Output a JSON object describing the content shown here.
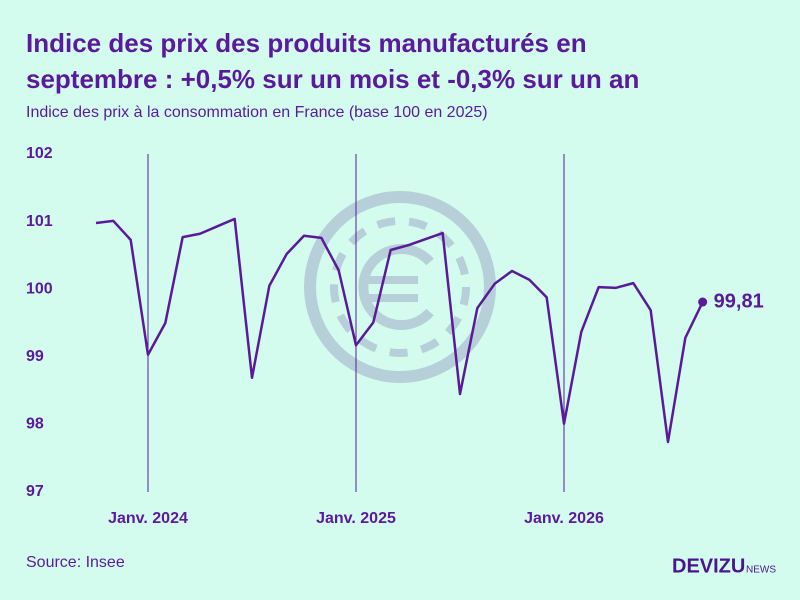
{
  "chart_data": {
    "type": "line",
    "title": "Indice des prix des produits manufacturés en septembre : +0,5% sur un mois et -0,3% sur un an",
    "title_lines": [
      "Indice des prix des produits manufacturés en",
      "septembre : +0,5% sur un mois et -0,3% sur un an"
    ],
    "subtitle": "Indice des prix à la consommation en France (base 100 en 2025)",
    "source": "Source: Insee",
    "logo": {
      "name": "DEVIZU",
      "suffix": "NEWS"
    },
    "categories": [
      null,
      null,
      null,
      "Janv. 2024",
      null,
      null,
      null,
      null,
      null,
      null,
      null,
      null,
      null,
      null,
      null,
      "Janv. 2025",
      null,
      null,
      null,
      null,
      null,
      null,
      null,
      null,
      null,
      null,
      null,
      "Janv. 2026",
      null,
      null,
      null,
      null,
      null,
      null,
      null,
      null
    ],
    "series": [
      {
        "name": "Indice",
        "color": "#5a1a9a",
        "values": [
          100.98,
          101.01,
          100.73,
          99.03,
          99.5,
          100.77,
          100.82,
          100.93,
          101.04,
          98.69,
          100.05,
          100.52,
          100.79,
          100.76,
          100.28,
          99.17,
          99.51,
          100.58,
          100.65,
          100.74,
          100.83,
          98.45,
          99.72,
          100.08,
          100.27,
          100.14,
          99.88,
          98.01,
          99.37,
          100.03,
          100.02,
          100.09,
          99.69,
          97.74,
          99.28,
          99.81
        ],
        "value_labels": [
          null,
          null,
          null,
          null,
          null,
          null,
          null,
          null,
          null,
          null,
          null,
          null,
          null,
          null,
          null,
          null,
          null,
          null,
          null,
          null,
          null,
          null,
          null,
          null,
          null,
          null,
          null,
          null,
          null,
          null,
          null,
          null,
          null,
          null,
          null,
          "99,81"
        ]
      }
    ],
    "ylim": [
      97,
      102
    ],
    "yticks": [
      97,
      98,
      99,
      100,
      101,
      102
    ],
    "grid": false
  }
}
